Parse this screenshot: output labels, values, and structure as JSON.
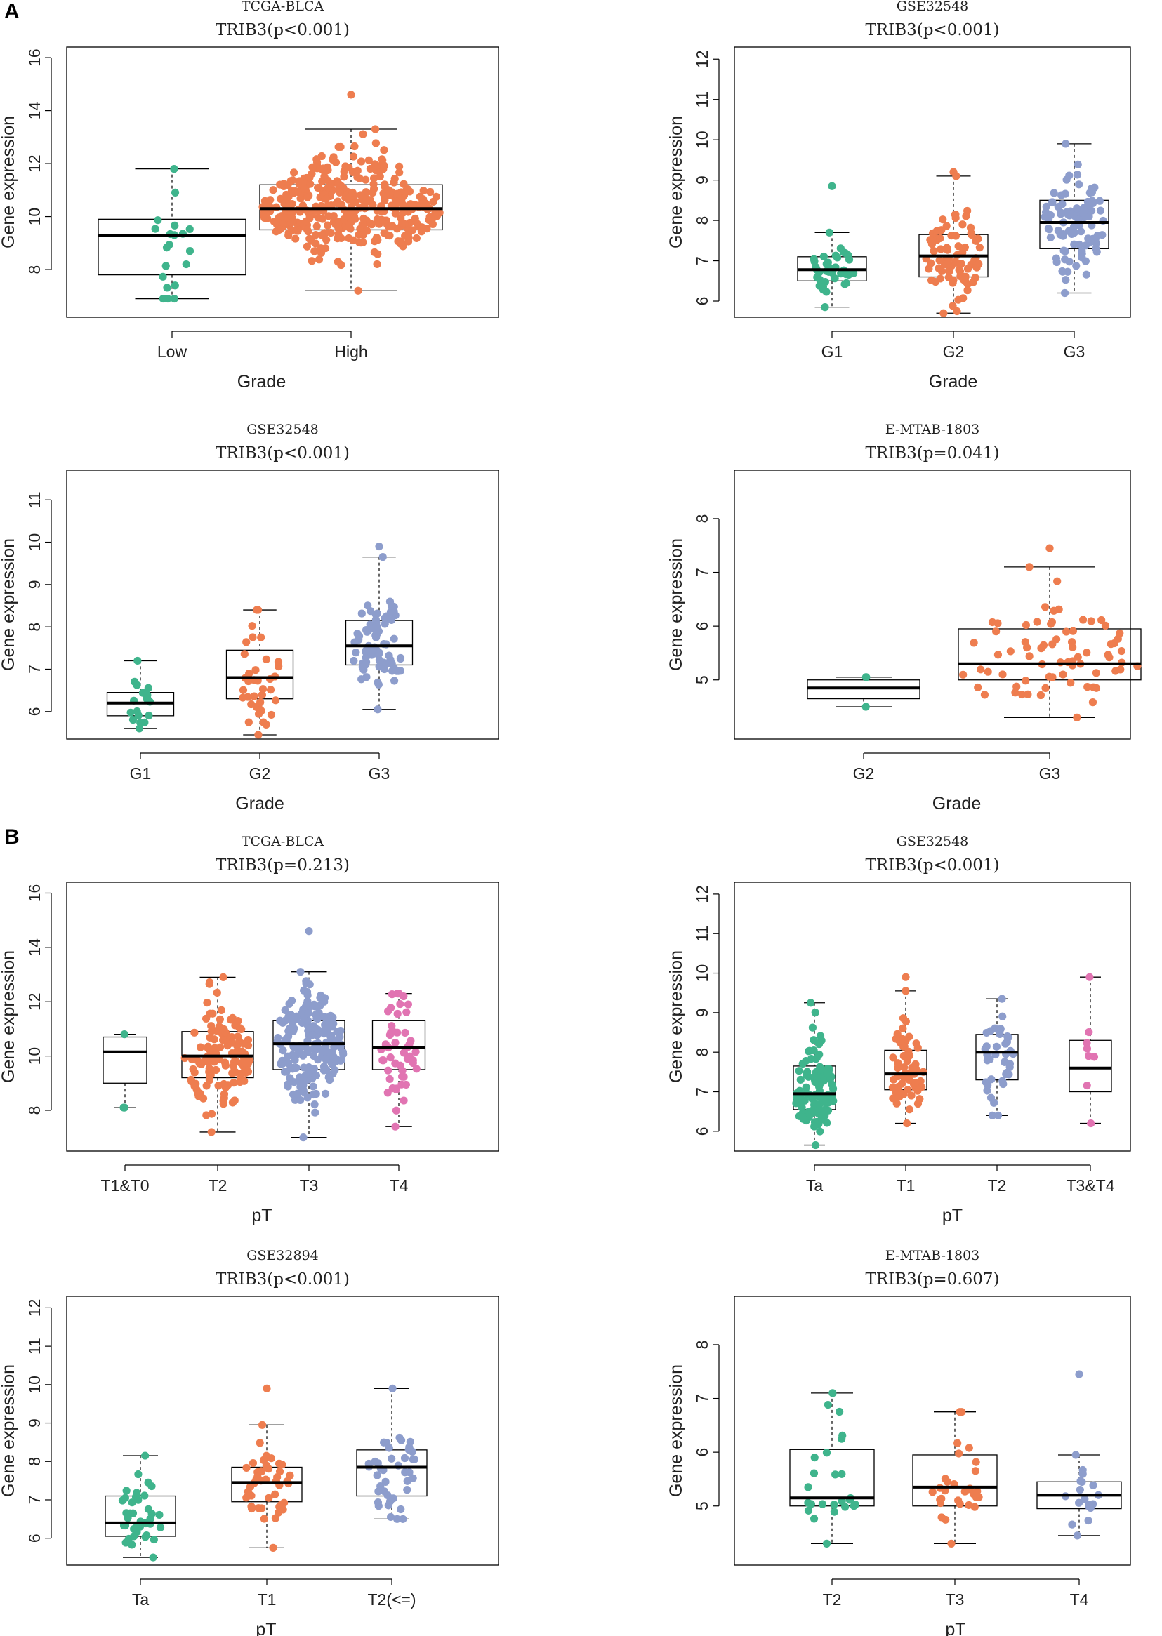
{
  "figure": {
    "panel_labels": [
      "A",
      "B"
    ]
  },
  "colors": {
    "group": [
      "#3fb48c",
      "#ee7d4f",
      "#8d9dcc",
      "#e174b2"
    ],
    "box": "#000000"
  },
  "chart_data": [
    {
      "type": "box",
      "dataset": "TCGA-BLCA",
      "title": "TRIB3(p<0.001)",
      "xlabel": "Grade",
      "ylabel": "Gene expression",
      "ylim": [
        6.2,
        16.4
      ],
      "yticks": [
        8,
        10,
        12,
        14,
        16
      ],
      "groups": [
        {
          "name": "Low",
          "min": 6.9,
          "q1": 7.8,
          "median": 9.3,
          "q3": 9.9,
          "max": 11.8,
          "n": 20,
          "spread": 0.25,
          "outliers": []
        },
        {
          "name": "High",
          "min": 7.2,
          "q1": 9.5,
          "median": 10.3,
          "q3": 11.2,
          "max": 13.3,
          "n": 390,
          "spread": 0.9,
          "outliers": [
            14.6
          ]
        }
      ]
    },
    {
      "type": "box",
      "dataset": "GSE32548",
      "title": "TRIB3(p<0.001)",
      "xlabel": "Grade",
      "ylabel": "Gene expression",
      "ylim": [
        5.6,
        12.3
      ],
      "yticks": [
        6,
        7,
        8,
        9,
        10,
        11,
        12
      ],
      "groups": [
        {
          "name": "G1",
          "min": 5.85,
          "q1": 6.5,
          "median": 6.78,
          "q3": 7.1,
          "max": 7.7,
          "n": 38,
          "spread": 0.6,
          "outliers": [
            8.85
          ]
        },
        {
          "name": "G2",
          "min": 5.7,
          "q1": 6.6,
          "median": 7.12,
          "q3": 7.65,
          "max": 9.1,
          "n": 85,
          "spread": 0.75,
          "outliers": [
            9.2
          ]
        },
        {
          "name": "G3",
          "min": 6.2,
          "q1": 7.3,
          "median": 7.95,
          "q3": 8.5,
          "max": 9.9,
          "n": 95,
          "spread": 0.8,
          "outliers": []
        }
      ]
    },
    {
      "type": "box",
      "dataset": "GSE32548",
      "title": "TRIB3(p<0.001)",
      "xlabel": "Grade",
      "ylabel": "Gene expression",
      "ylim": [
        5.35,
        11.7
      ],
      "yticks": [
        6,
        7,
        8,
        9,
        10,
        11
      ],
      "groups": [
        {
          "name": "G1",
          "min": 5.6,
          "q1": 5.9,
          "median": 6.2,
          "q3": 6.45,
          "max": 7.2,
          "n": 18,
          "spread": 0.3,
          "outliers": []
        },
        {
          "name": "G2",
          "min": 5.45,
          "q1": 6.3,
          "median": 6.8,
          "q3": 7.45,
          "max": 8.4,
          "n": 38,
          "spread": 0.55,
          "outliers": []
        },
        {
          "name": "G3",
          "min": 6.05,
          "q1": 7.1,
          "median": 7.55,
          "q3": 8.15,
          "max": 9.65,
          "n": 75,
          "spread": 0.8,
          "outliers": [
            9.9
          ]
        }
      ]
    },
    {
      "type": "box",
      "dataset": "E-MTAB-1803",
      "title": "TRIB3(p=0.041)",
      "xlabel": "Grade",
      "ylabel": "Gene expression",
      "ylim": [
        3.9,
        8.9
      ],
      "yticks": [
        5,
        6,
        7,
        8
      ],
      "groups": [
        {
          "name": "G2",
          "min": 4.5,
          "q1": 4.65,
          "median": 4.85,
          "q3": 5.0,
          "max": 5.05,
          "n": 3,
          "spread": 0.12,
          "outliers": []
        },
        {
          "name": "G3",
          "min": 4.3,
          "q1": 5.0,
          "median": 5.3,
          "q3": 5.95,
          "max": 7.1,
          "n": 72,
          "spread": 0.9,
          "outliers": [
            7.45
          ]
        }
      ]
    },
    {
      "type": "box",
      "dataset": "TCGA-BLCA",
      "title": "TRIB3(p=0.213)",
      "xlabel": "pT",
      "ylabel": "Gene expression",
      "ylim": [
        6.5,
        16.4
      ],
      "yticks": [
        8,
        10,
        12,
        14,
        16
      ],
      "groups": [
        {
          "name": "T1&T0",
          "min": 8.1,
          "q1": 9.0,
          "median": 10.15,
          "q3": 10.7,
          "max": 10.8,
          "n": 3,
          "spread": 0.2,
          "outliers": []
        },
        {
          "name": "T2",
          "min": 7.2,
          "q1": 9.2,
          "median": 10.0,
          "q3": 10.9,
          "max": 12.9,
          "n": 120,
          "spread": 0.85,
          "outliers": []
        },
        {
          "name": "T3",
          "min": 7.0,
          "q1": 9.5,
          "median": 10.45,
          "q3": 11.3,
          "max": 13.1,
          "n": 190,
          "spread": 0.9,
          "outliers": [
            14.6
          ]
        },
        {
          "name": "T4",
          "min": 7.4,
          "q1": 9.5,
          "median": 10.3,
          "q3": 11.3,
          "max": 12.3,
          "n": 50,
          "spread": 0.7,
          "outliers": []
        }
      ]
    },
    {
      "type": "box",
      "dataset": "GSE32548",
      "title": "TRIB3(p<0.001)",
      "xlabel": "pT",
      "ylabel": "Gene expression",
      "ylim": [
        5.5,
        12.3
      ],
      "yticks": [
        6,
        7,
        8,
        9,
        10,
        11,
        12
      ],
      "groups": [
        {
          "name": "Ta",
          "min": 5.65,
          "q1": 6.55,
          "median": 6.95,
          "q3": 7.65,
          "max": 9.25,
          "n": 110,
          "spread": 0.85,
          "outliers": []
        },
        {
          "name": "T1",
          "min": 6.2,
          "q1": 7.05,
          "median": 7.45,
          "q3": 8.05,
          "max": 9.55,
          "n": 60,
          "spread": 0.8,
          "outliers": [
            9.9
          ]
        },
        {
          "name": "T2",
          "min": 6.4,
          "q1": 7.3,
          "median": 8.0,
          "q3": 8.45,
          "max": 9.35,
          "n": 40,
          "spread": 0.7,
          "outliers": []
        },
        {
          "name": "T3&T4",
          "min": 6.2,
          "q1": 7.0,
          "median": 7.6,
          "q3": 8.3,
          "max": 9.9,
          "n": 8,
          "spread": 0.2,
          "outliers": []
        }
      ]
    },
    {
      "type": "box",
      "dataset": "GSE32894",
      "title": "TRIB3(p<0.001)",
      "xlabel": "pT",
      "ylabel": "Gene expression",
      "ylim": [
        5.3,
        12.3
      ],
      "yticks": [
        6,
        7,
        8,
        9,
        10,
        11,
        12
      ],
      "groups": [
        {
          "name": "Ta",
          "min": 5.5,
          "q1": 6.05,
          "median": 6.4,
          "q3": 7.1,
          "max": 8.15,
          "n": 40,
          "spread": 0.6,
          "outliers": []
        },
        {
          "name": "T1",
          "min": 5.75,
          "q1": 6.95,
          "median": 7.45,
          "q3": 7.85,
          "max": 8.95,
          "n": 45,
          "spread": 0.65,
          "outliers": [
            9.9
          ]
        },
        {
          "name": "T2(<=)",
          "min": 6.5,
          "q1": 7.1,
          "median": 7.85,
          "q3": 8.3,
          "max": 9.9,
          "n": 42,
          "spread": 0.65,
          "outliers": []
        }
      ]
    },
    {
      "type": "box",
      "dataset": "E-MTAB-1803",
      "title": "TRIB3(p=0.607)",
      "xlabel": "pT",
      "ylabel": "Gene expression",
      "ylim": [
        3.9,
        8.9
      ],
      "yticks": [
        5,
        6,
        7,
        8
      ],
      "groups": [
        {
          "name": "T2",
          "min": 4.3,
          "q1": 5.0,
          "median": 5.15,
          "q3": 6.05,
          "max": 7.1,
          "n": 26,
          "spread": 0.55,
          "outliers": []
        },
        {
          "name": "T3",
          "min": 4.3,
          "q1": 5.0,
          "median": 5.35,
          "q3": 5.95,
          "max": 6.75,
          "n": 30,
          "spread": 0.55,
          "outliers": []
        },
        {
          "name": "T4",
          "min": 4.45,
          "q1": 4.95,
          "median": 5.2,
          "q3": 5.45,
          "max": 5.95,
          "n": 18,
          "spread": 0.45,
          "outliers": [
            7.45
          ]
        }
      ]
    }
  ]
}
